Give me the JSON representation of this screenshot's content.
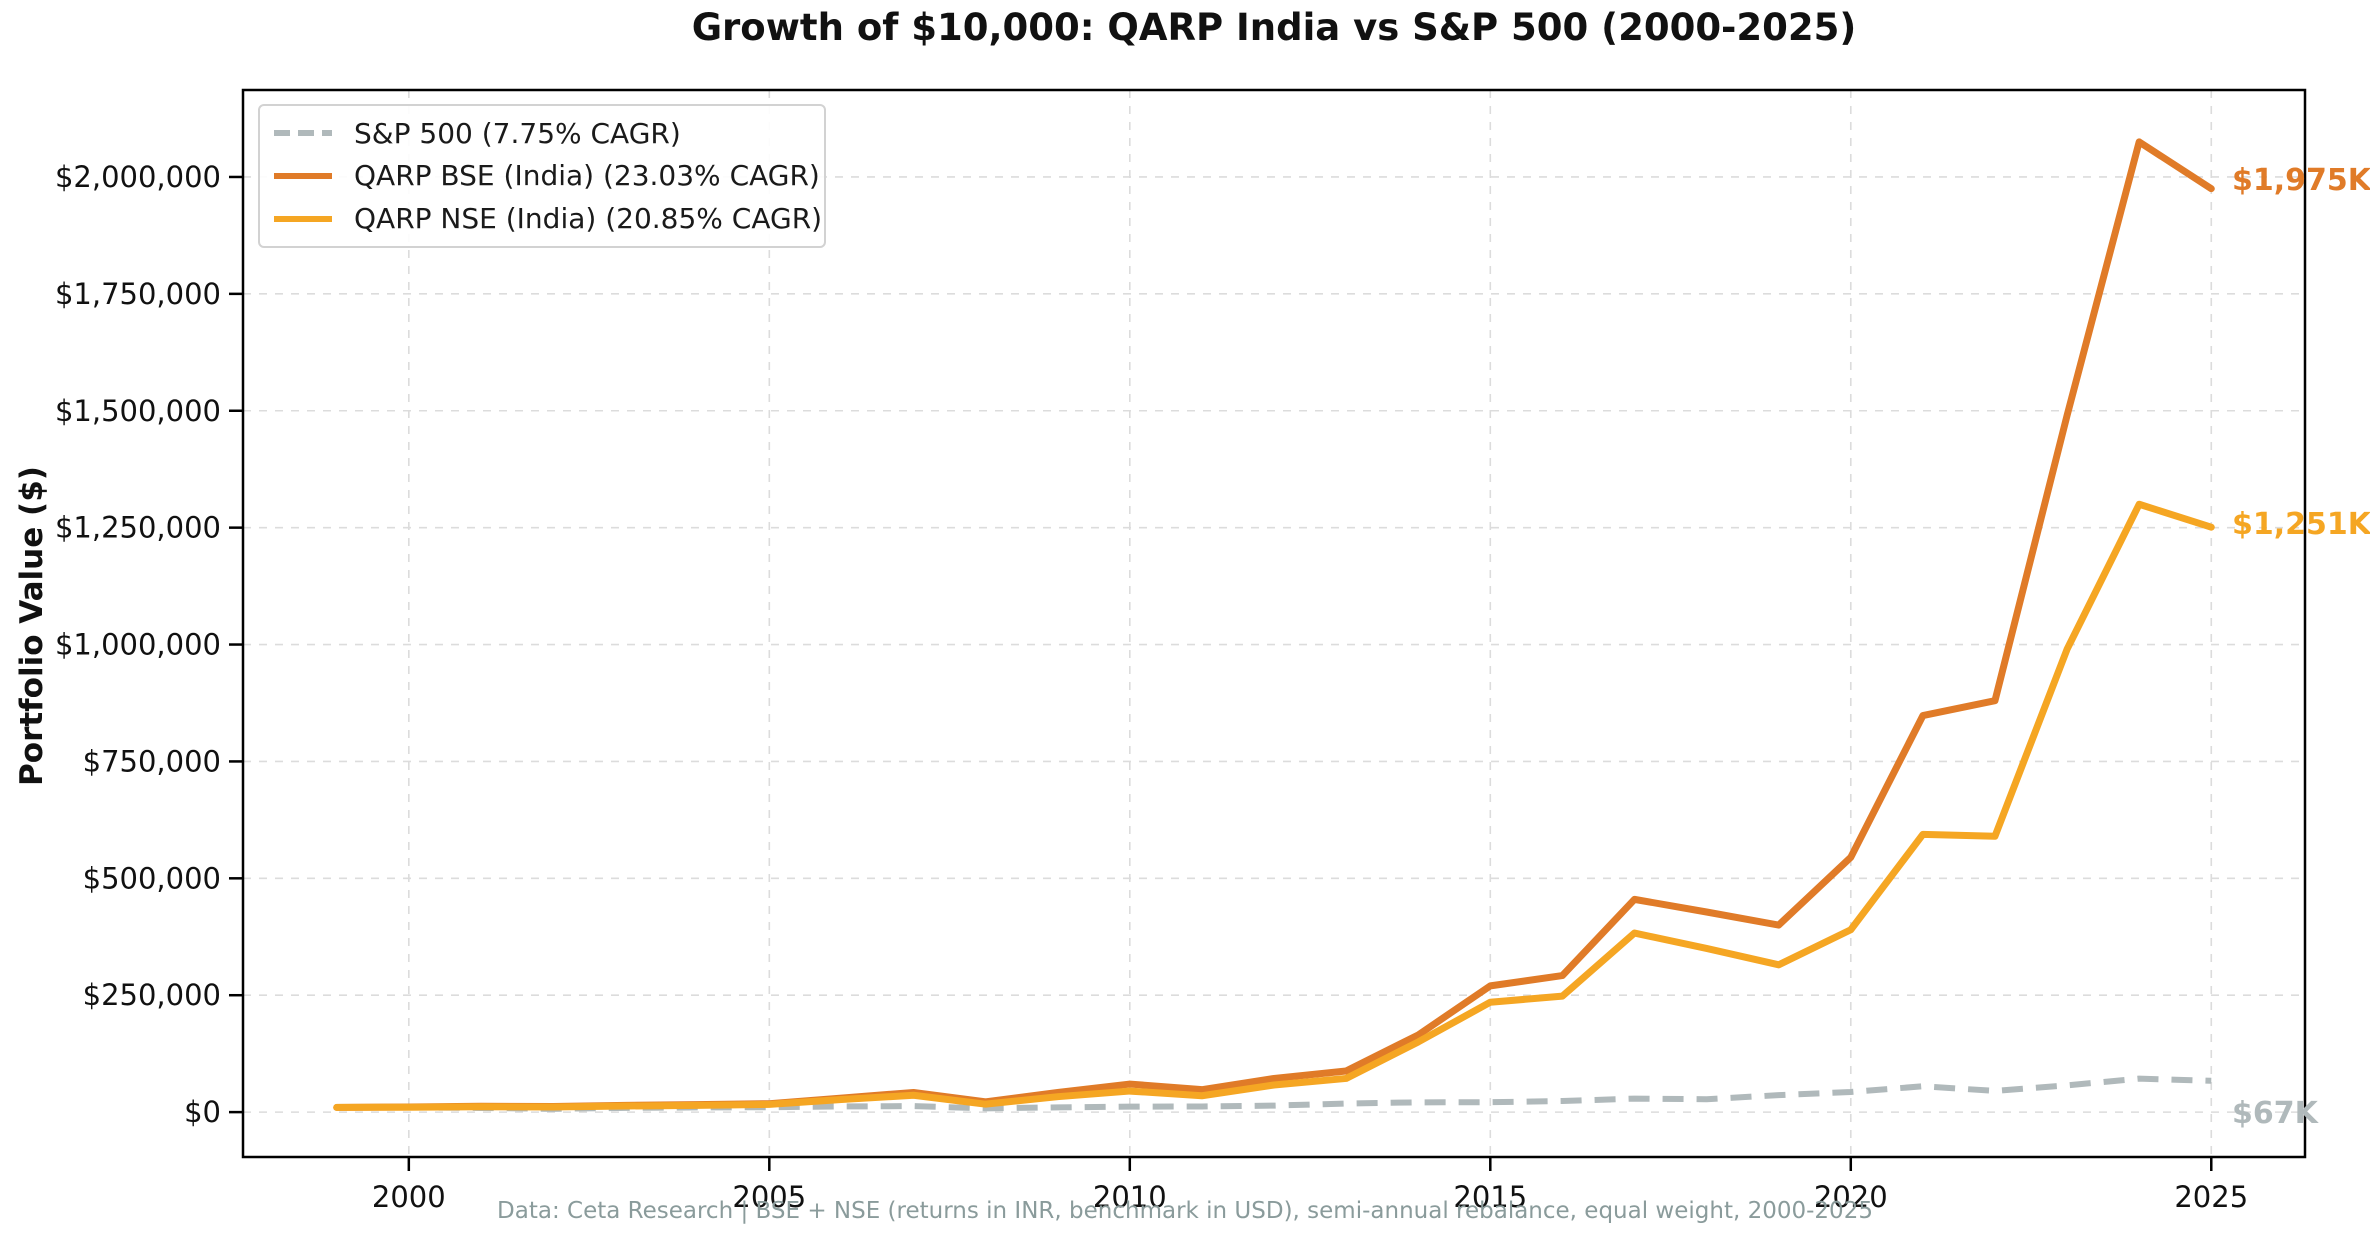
{
  "title": "Growth of $10,000: QARP India vs S&P 500 (2000-2025)",
  "ylabel": "Portfolio Value ($)",
  "footer": "Data: Ceta Research | BSE + NSE (returns in INR, benchmark in USD), semi-annual rebalance, equal weight, 2000-2025",
  "colors": {
    "sp500": "#b0b9bb",
    "qarp_bse": "#e07b28",
    "qarp_nse": "#f5a623",
    "grid": "#dcdcdc",
    "spine": "#000000",
    "footer_text": "#8a9b9b"
  },
  "chart_data": {
    "type": "line",
    "title": "Growth of $10,000: QARP India vs S&P 500 (2000-2025)",
    "xlabel": "",
    "ylabel": "Portfolio Value ($)",
    "grid": true,
    "legend_position": "upper left",
    "x": [
      1999,
      2000,
      2001,
      2002,
      2003,
      2004,
      2005,
      2006,
      2007,
      2008,
      2009,
      2010,
      2011,
      2012,
      2013,
      2014,
      2015,
      2016,
      2017,
      2018,
      2019,
      2020,
      2021,
      2022,
      2023,
      2024,
      2025
    ],
    "series": [
      {
        "name": "S&P 500 (7.75% CAGR)",
        "color": "#b0b9bb",
        "style": "dashed",
        "end_label": "$67K",
        "values": [
          10000,
          10100,
          8900,
          7000,
          9000,
          10000,
          10500,
          12100,
          12800,
          8100,
          10200,
          11700,
          12000,
          13900,
          18400,
          20900,
          21200,
          23700,
          28900,
          27600,
          36300,
          43000,
          55300,
          45300,
          57200,
          71600,
          67000
        ]
      },
      {
        "name": "QARP BSE (India) (23.03% CAGR)",
        "color": "#e07b28",
        "style": "solid",
        "end_label": "$1,975K",
        "values": [
          10000,
          11000,
          12500,
          12000,
          14500,
          16000,
          18000,
          30000,
          42000,
          22000,
          42000,
          60000,
          48000,
          72000,
          88000,
          165000,
          270000,
          292000,
          455000,
          428000,
          400000,
          545000,
          848000,
          880000,
          1490000,
          2075000,
          1975000
        ]
      },
      {
        "name": "QARP NSE (India) (20.85% CAGR)",
        "color": "#f5a623",
        "style": "solid",
        "end_label": "$1,251K",
        "values": [
          10000,
          10500,
          11500,
          11000,
          13000,
          14500,
          16500,
          27000,
          36000,
          17000,
          33000,
          45000,
          35000,
          58000,
          72000,
          150000,
          235000,
          248000,
          383000,
          350000,
          315000,
          390000,
          594000,
          590000,
          990000,
          1300000,
          1251000
        ]
      }
    ],
    "xlim": [
      1997.7,
      2026.3
    ],
    "ylim": [
      -96000,
      2186000
    ],
    "xticks": {
      "values": [
        2000,
        2005,
        2010,
        2015,
        2020,
        2025
      ],
      "labels": [
        "2000",
        "2005",
        "2010",
        "2015",
        "2020",
        "2025"
      ]
    },
    "yticks": {
      "values": [
        0,
        250000,
        500000,
        750000,
        1000000,
        1250000,
        1500000,
        1750000,
        2000000
      ],
      "labels": [
        "$0",
        "$250,000",
        "$500,000",
        "$750,000",
        "$1,000,000",
        "$1,250,000",
        "$1,500,000",
        "$1,750,000",
        "$2,000,000"
      ]
    }
  }
}
